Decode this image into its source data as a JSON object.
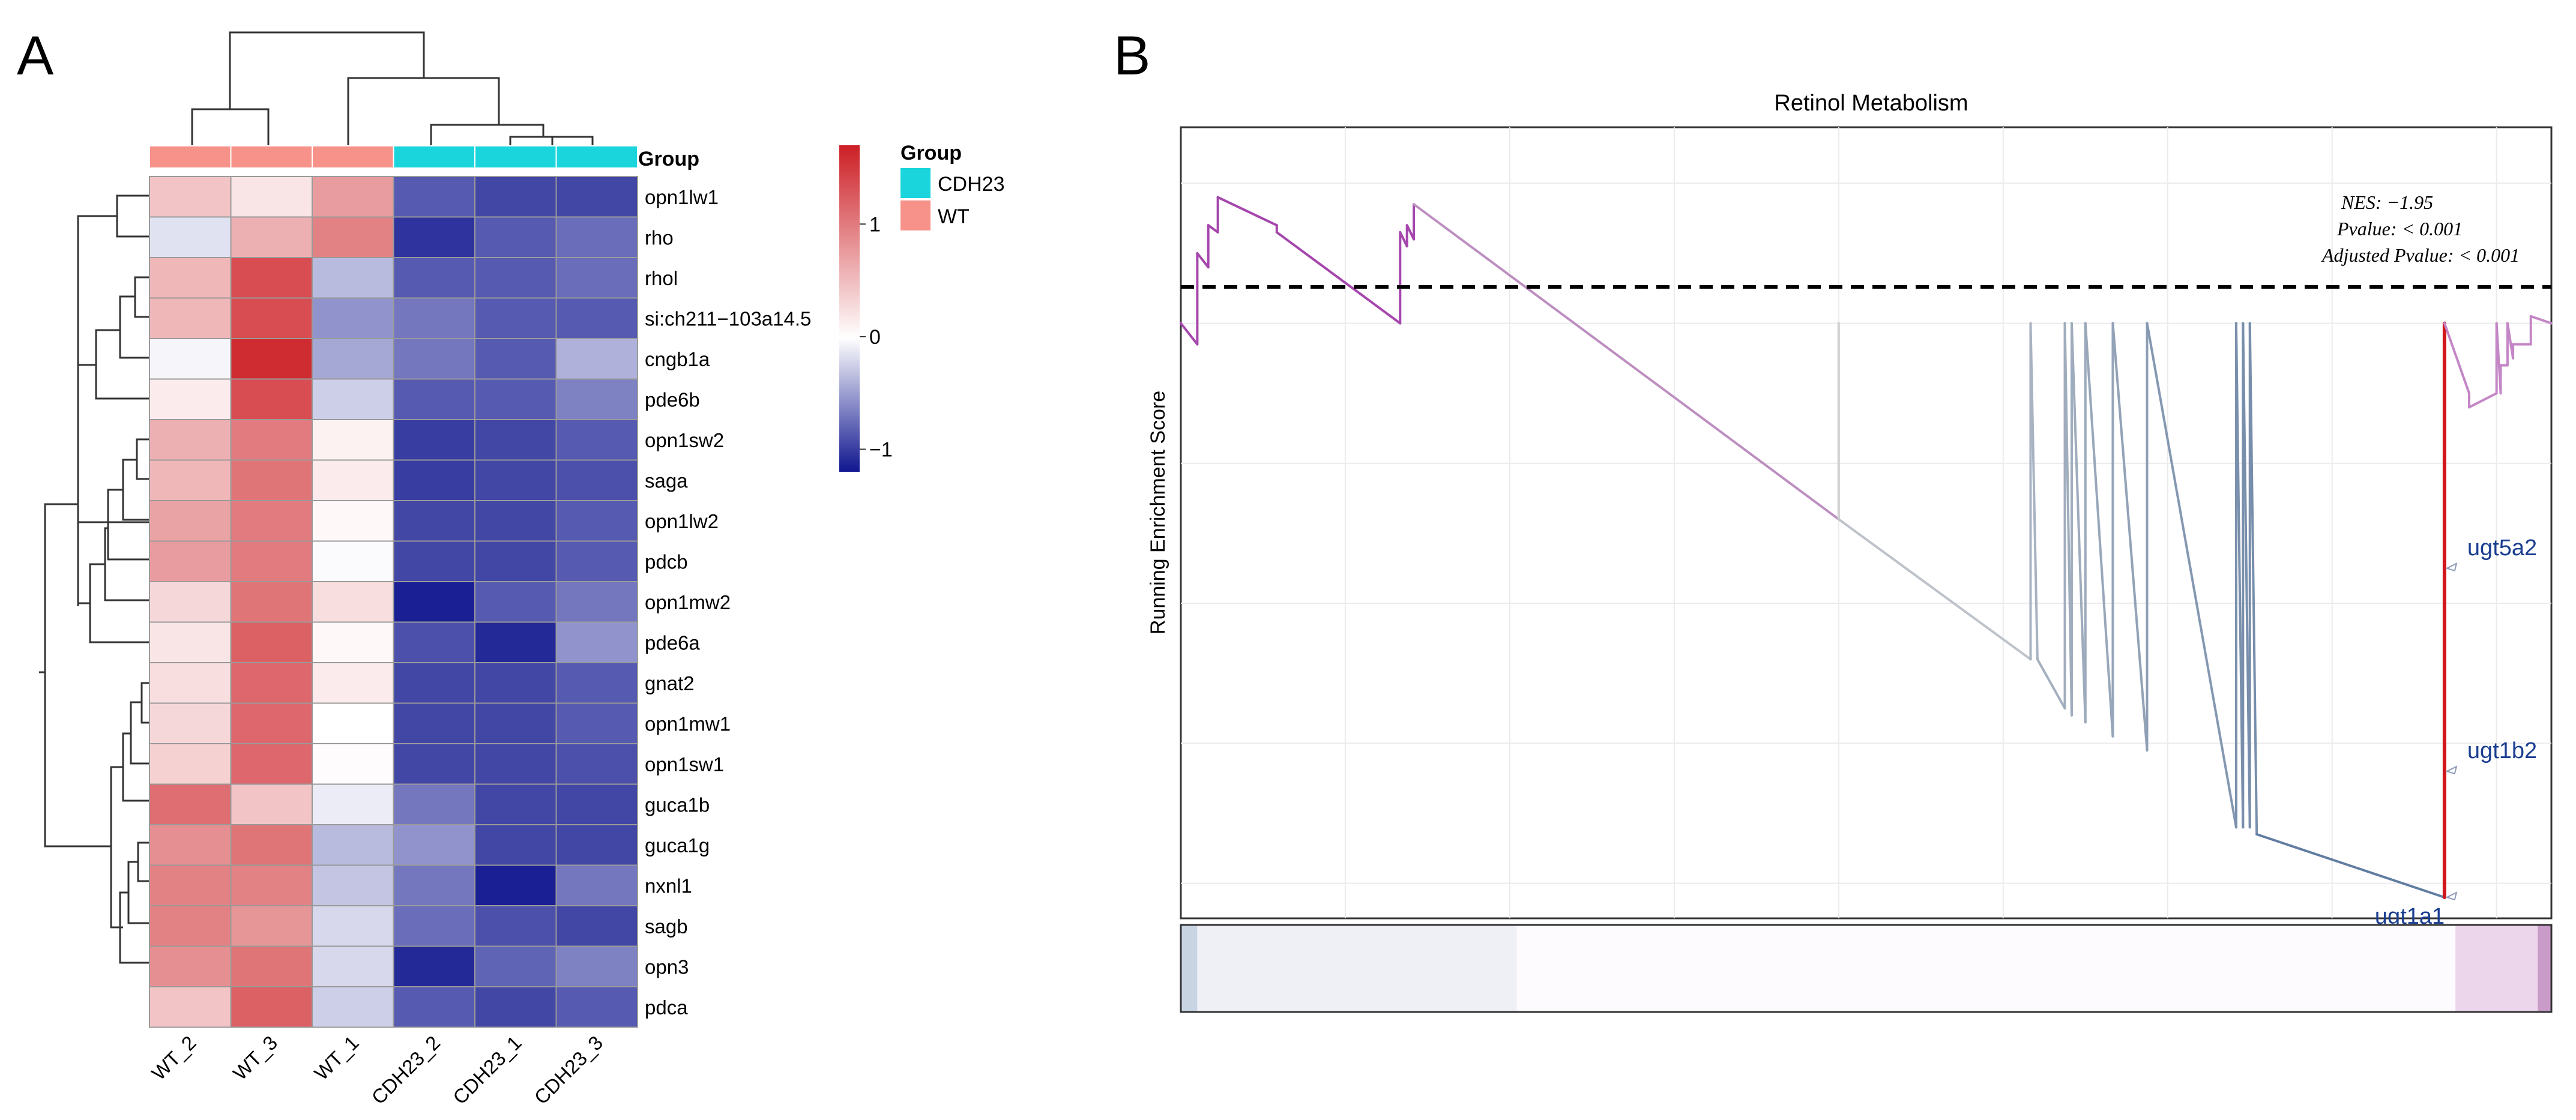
{
  "colors": {
    "hm_low": "#10168f",
    "hm_mid": "#ffffff",
    "hm_high": "#cc1f25",
    "group_cdh23": "#1bd5dc",
    "group_wt": "#f6928a",
    "gsea_es_start": "#a546ad",
    "gsea_es_mid": "#d3d3d3",
    "gsea_es_end": "#4d6e99",
    "gsea_leading_edge": "#d1161b",
    "gene_label": "#1b3e91"
  },
  "chart_data": [
    {
      "type": "heatmap",
      "panel_letter": "A",
      "columns": [
        "WT_2",
        "WT_3",
        "WT_1",
        "CDH23_2",
        "CDH23_1",
        "CDH23_3"
      ],
      "column_groups": [
        "WT",
        "WT",
        "WT",
        "CDH23",
        "CDH23",
        "CDH23"
      ],
      "rows": [
        "opn1lw1",
        "rho",
        "rhol",
        "si:ch211−103a14.5",
        "cngb1a",
        "pde6b",
        "opn1sw2",
        "saga",
        "opn1lw2",
        "pdcb",
        "opn1mw2",
        "pde6a",
        "gnat2",
        "opn1mw1",
        "opn1sw1",
        "guca1b",
        "guca1g",
        "nxnl1",
        "sagb",
        "opn3",
        "pdca"
      ],
      "values": [
        [
          0.45,
          0.2,
          0.75,
          -0.85,
          -0.95,
          -0.95
        ],
        [
          -0.15,
          0.6,
          0.95,
          -1.05,
          -0.85,
          -0.75
        ],
        [
          0.55,
          1.35,
          -0.35,
          -0.85,
          -0.85,
          -0.75
        ],
        [
          0.55,
          1.35,
          -0.55,
          -0.7,
          -0.85,
          -0.85
        ],
        [
          -0.05,
          1.6,
          -0.45,
          -0.7,
          -0.85,
          -0.4
        ],
        [
          0.15,
          1.35,
          -0.25,
          -0.85,
          -0.85,
          -0.65
        ],
        [
          0.6,
          1.0,
          0.1,
          -1.0,
          -0.95,
          -0.85
        ],
        [
          0.55,
          1.05,
          0.15,
          -1.0,
          -0.95,
          -0.9
        ],
        [
          0.7,
          1.0,
          0.05,
          -0.95,
          -0.95,
          -0.85
        ],
        [
          0.75,
          1.0,
          -0.02,
          -0.95,
          -0.95,
          -0.85
        ],
        [
          0.3,
          1.05,
          0.25,
          -1.15,
          -0.85,
          -0.7
        ],
        [
          0.2,
          1.2,
          0.05,
          -0.9,
          -1.1,
          -0.55
        ],
        [
          0.25,
          1.15,
          0.15,
          -0.95,
          -0.95,
          -0.85
        ],
        [
          0.3,
          1.15,
          0.0,
          -0.95,
          -0.95,
          -0.85
        ],
        [
          0.35,
          1.15,
          0.02,
          -0.95,
          -0.95,
          -0.9
        ],
        [
          1.1,
          0.45,
          -0.1,
          -0.7,
          -0.95,
          -0.95
        ],
        [
          0.85,
          1.05,
          -0.35,
          -0.55,
          -0.95,
          -0.95
        ],
        [
          0.95,
          0.95,
          -0.3,
          -0.7,
          -1.15,
          -0.7
        ],
        [
          0.95,
          0.8,
          -0.2,
          -0.75,
          -0.9,
          -0.95
        ],
        [
          0.85,
          1.05,
          -0.2,
          -1.1,
          -0.8,
          -0.65
        ],
        [
          0.45,
          1.2,
          -0.25,
          -0.85,
          -0.95,
          -0.85
        ]
      ],
      "annotation_label": "Group",
      "legend_title": "Group",
      "legend_entries": [
        "CDH23",
        "WT"
      ],
      "colorbar_ticks": [
        "1",
        "0",
        "−1"
      ],
      "colorbar_tick_values": [
        1,
        0,
        -1
      ],
      "colorbar_range": [
        -1.2,
        1.7
      ]
    },
    {
      "type": "line",
      "panel_letter": "B",
      "title": "Retinol Metabolism",
      "ylabel": "Running Enrichment Score",
      "stats": [
        "NES: −1.95",
        "Pvalue: < 0.001",
        "Adjusted Pvalue: < 0.001"
      ],
      "xlim": [
        0,
        1
      ],
      "ylim": [
        -0.85,
        0.28
      ],
      "baseline": 0,
      "running_score": [
        [
          0.0,
          0.0
        ],
        [
          0.01,
          -0.03
        ],
        [
          0.01,
          0.08
        ],
        [
          0.02,
          0.05
        ],
        [
          0.02,
          0.14
        ],
        [
          0.03,
          0.11
        ],
        [
          0.03,
          0.18
        ],
        [
          0.05,
          0.13
        ],
        [
          0.055,
          0.13
        ],
        [
          0.16,
          0.0
        ],
        [
          0.16,
          0.13
        ],
        [
          0.165,
          0.11
        ],
        [
          0.165,
          0.14
        ],
        [
          0.17,
          0.12
        ],
        [
          0.17,
          0.17
        ],
        [
          0.475,
          0.0
        ],
        [
          0.475,
          0.0
        ],
        [
          0.475,
          -0.09
        ],
        [
          0.475,
          -0.09
        ],
        [
          0.475,
          -0.09
        ],
        [
          0.475,
          -0.09
        ],
        [
          0.475,
          -0.09
        ],
        [
          0.475,
          -0.09
        ],
        [
          0.475,
          -0.09
        ],
        [
          0.475,
          -0.09
        ],
        [
          0.475,
          -0.09
        ],
        [
          0.475,
          -0.09
        ],
        [
          0.475,
          -0.09
        ],
        [
          0.475,
          -0.09
        ],
        [
          0.475,
          -0.09
        ],
        [
          0.475,
          -0.09
        ],
        [
          0.475,
          -0.09
        ],
        [
          0.475,
          -0.09
        ]
      ],
      "running_score_points": [
        [
          0.0,
          0.0
        ],
        [
          0.012,
          -0.03
        ],
        [
          0.012,
          0.1
        ],
        [
          0.02,
          0.08
        ],
        [
          0.02,
          0.14
        ],
        [
          0.027,
          0.13
        ],
        [
          0.027,
          0.18
        ],
        [
          0.07,
          0.14
        ],
        [
          0.07,
          0.13
        ],
        [
          0.16,
          0.0
        ],
        [
          0.16,
          0.13
        ],
        [
          0.165,
          0.11
        ],
        [
          0.165,
          0.14
        ],
        [
          0.17,
          0.12
        ],
        [
          0.17,
          0.17
        ],
        [
          0.48,
          -0.28
        ],
        [
          0.48,
          0.0
        ],
        [
          0.48,
          -0.28
        ],
        [
          0.62,
          -0.48
        ],
        [
          0.62,
          0.0
        ],
        [
          0.625,
          -0.48
        ],
        [
          0.645,
          -0.55
        ],
        [
          0.645,
          0.0
        ],
        [
          0.65,
          -0.56
        ],
        [
          0.65,
          0.0
        ],
        [
          0.66,
          -0.57
        ],
        [
          0.66,
          0.0
        ],
        [
          0.68,
          -0.59
        ],
        [
          0.68,
          0.0
        ],
        [
          0.705,
          -0.61
        ],
        [
          0.705,
          0.0
        ],
        [
          0.77,
          -0.72
        ],
        [
          0.77,
          0.0
        ],
        [
          0.775,
          -0.72
        ],
        [
          0.775,
          0.0
        ],
        [
          0.78,
          -0.72
        ],
        [
          0.78,
          0.0
        ],
        [
          0.785,
          -0.73
        ],
        [
          0.922,
          -0.82
        ],
        [
          0.922,
          0.0
        ],
        [
          0.94,
          -0.1
        ],
        [
          0.94,
          -0.12
        ],
        [
          0.96,
          -0.1
        ],
        [
          0.96,
          0.0
        ],
        [
          0.963,
          -0.1
        ],
        [
          0.963,
          -0.06
        ],
        [
          0.968,
          -0.06
        ],
        [
          0.968,
          -0.0
        ],
        [
          0.972,
          -0.05
        ],
        [
          0.972,
          -0.03
        ],
        [
          0.985,
          -0.03
        ],
        [
          0.985,
          0.01
        ],
        [
          1.0,
          0.0
        ]
      ],
      "gene_labels": [
        {
          "name": "ugt5a2",
          "x": 0.922,
          "y": -0.35
        },
        {
          "name": "ugt1b2",
          "x": 0.922,
          "y": -0.64
        },
        {
          "name": "ugt1a1",
          "x": 0.922,
          "y": -0.82
        }
      ],
      "rank_bar_segments": [
        {
          "from": 0.0,
          "to": 0.012,
          "color": "#c9d4e2"
        },
        {
          "from": 0.012,
          "to": 0.245,
          "color": "#eef0f5"
        },
        {
          "from": 0.245,
          "to": 0.93,
          "color": "#fdfbfd"
        },
        {
          "from": 0.93,
          "to": 0.99,
          "color": "#ecd6ec"
        },
        {
          "from": 0.99,
          "to": 1.0,
          "color": "#c99bc9"
        }
      ],
      "grid": true
    }
  ]
}
